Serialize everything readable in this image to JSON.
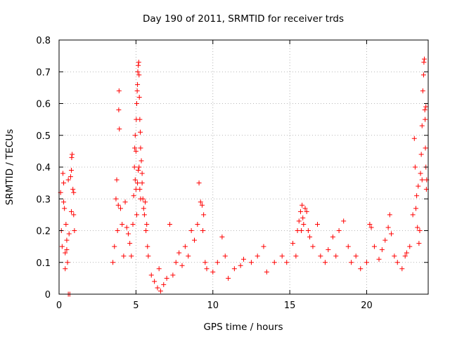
{
  "chart_data": {
    "type": "scatter",
    "title": "Day 190 of 2011, SRMTID for receiver trds",
    "xlabel": "GPS time / hours",
    "ylabel": "SRMTID / TECUs",
    "xlim": [
      0,
      24
    ],
    "ylim": [
      0,
      0.8
    ],
    "x_ticks": [
      0,
      5,
      10,
      15,
      20
    ],
    "x_tick_labels": [
      "0",
      "5",
      "10",
      "15",
      "20"
    ],
    "y_ticks": [
      0,
      0.1,
      0.2,
      0.3,
      0.4,
      0.5,
      0.6,
      0.7,
      0.8
    ],
    "y_tick_labels": [
      "0",
      "0.1",
      "0.2",
      "0.3",
      "0.4",
      "0.5",
      "0.6",
      "0.7",
      "0.8"
    ],
    "grid": true,
    "marker": "+",
    "color": "#ff0000",
    "series": [
      {
        "name": "SRMTID",
        "points": [
          [
            0.1,
            0.32
          ],
          [
            0.2,
            0.15
          ],
          [
            0.25,
            0.38
          ],
          [
            0.3,
            0.29
          ],
          [
            0.35,
            0.27
          ],
          [
            0.4,
            0.13
          ],
          [
            0.45,
            0.22
          ],
          [
            0.5,
            0.14
          ],
          [
            0.55,
            0.1
          ],
          [
            0.6,
            0.36
          ],
          [
            0.65,
            0.19
          ],
          [
            0.7,
            0.0
          ],
          [
            0.75,
            0.37
          ],
          [
            0.8,
            0.39
          ],
          [
            0.82,
            0.43
          ],
          [
            0.85,
            0.44
          ],
          [
            0.9,
            0.33
          ],
          [
            0.95,
            0.25
          ],
          [
            1.0,
            0.2
          ],
          [
            0.6,
            0.0
          ],
          [
            0.3,
            0.35
          ],
          [
            0.15,
            0.2
          ],
          [
            0.95,
            0.32
          ],
          [
            0.4,
            0.08
          ],
          [
            0.8,
            0.26
          ],
          [
            0.5,
            0.17
          ],
          [
            3.5,
            0.1
          ],
          [
            3.6,
            0.15
          ],
          [
            3.7,
            0.3
          ],
          [
            3.75,
            0.36
          ],
          [
            3.8,
            0.2
          ],
          [
            3.85,
            0.28
          ],
          [
            3.88,
            0.58
          ],
          [
            3.9,
            0.64
          ],
          [
            3.92,
            0.52
          ],
          [
            4.0,
            0.27
          ],
          [
            4.1,
            0.22
          ],
          [
            4.2,
            0.12
          ],
          [
            4.3,
            0.29
          ],
          [
            4.4,
            0.21
          ],
          [
            4.5,
            0.19
          ],
          [
            4.6,
            0.16
          ],
          [
            4.7,
            0.12
          ],
          [
            4.8,
            0.22
          ],
          [
            4.85,
            0.31
          ],
          [
            4.9,
            0.4
          ],
          [
            4.92,
            0.46
          ],
          [
            4.95,
            0.5
          ],
          [
            5.0,
            0.45
          ],
          [
            5.02,
            0.55
          ],
          [
            5.05,
            0.6
          ],
          [
            5.08,
            0.64
          ],
          [
            5.1,
            0.66
          ],
          [
            5.12,
            0.7
          ],
          [
            5.15,
            0.72
          ],
          [
            5.18,
            0.73
          ],
          [
            5.2,
            0.69
          ],
          [
            5.22,
            0.62
          ],
          [
            5.25,
            0.55
          ],
          [
            5.28,
            0.51
          ],
          [
            5.3,
            0.46
          ],
          [
            5.35,
            0.42
          ],
          [
            5.4,
            0.38
          ],
          [
            5.45,
            0.3
          ],
          [
            5.5,
            0.27
          ],
          [
            5.55,
            0.25
          ],
          [
            5.6,
            0.29
          ],
          [
            5.65,
            0.2
          ],
          [
            5.7,
            0.22
          ],
          [
            5.75,
            0.15
          ],
          [
            5.8,
            0.12
          ],
          [
            5.1,
            0.35
          ],
          [
            5.15,
            0.39
          ],
          [
            5.2,
            0.4
          ],
          [
            5.25,
            0.33
          ],
          [
            5.3,
            0.3
          ],
          [
            5.4,
            0.35
          ],
          [
            5.05,
            0.25
          ],
          [
            4.95,
            0.36
          ],
          [
            5.0,
            0.33
          ],
          [
            6.0,
            0.06
          ],
          [
            6.2,
            0.04
          ],
          [
            6.4,
            0.02
          ],
          [
            6.5,
            0.08
          ],
          [
            6.6,
            0.01
          ],
          [
            6.8,
            0.03
          ],
          [
            7.0,
            0.05
          ],
          [
            7.2,
            0.22
          ],
          [
            7.4,
            0.06
          ],
          [
            7.6,
            0.1
          ],
          [
            7.8,
            0.13
          ],
          [
            8.0,
            0.09
          ],
          [
            8.2,
            0.15
          ],
          [
            8.4,
            0.12
          ],
          [
            8.6,
            0.2
          ],
          [
            8.8,
            0.17
          ],
          [
            9.0,
            0.22
          ],
          [
            9.1,
            0.35
          ],
          [
            9.2,
            0.29
          ],
          [
            9.3,
            0.28
          ],
          [
            9.35,
            0.2
          ],
          [
            9.4,
            0.25
          ],
          [
            9.5,
            0.1
          ],
          [
            9.6,
            0.08
          ],
          [
            10.0,
            0.07
          ],
          [
            10.3,
            0.1
          ],
          [
            10.6,
            0.18
          ],
          [
            10.8,
            0.12
          ],
          [
            11.0,
            0.05
          ],
          [
            11.4,
            0.08
          ],
          [
            11.8,
            0.09
          ],
          [
            12.0,
            0.11
          ],
          [
            12.5,
            0.1
          ],
          [
            12.9,
            0.12
          ],
          [
            13.3,
            0.15
          ],
          [
            13.5,
            0.07
          ],
          [
            14.0,
            0.1
          ],
          [
            14.5,
            0.12
          ],
          [
            14.8,
            0.1
          ],
          [
            15.2,
            0.16
          ],
          [
            15.4,
            0.12
          ],
          [
            15.5,
            0.2
          ],
          [
            15.6,
            0.23
          ],
          [
            15.7,
            0.26
          ],
          [
            15.75,
            0.2
          ],
          [
            15.8,
            0.28
          ],
          [
            15.85,
            0.24
          ],
          [
            15.9,
            0.22
          ],
          [
            16.0,
            0.27
          ],
          [
            16.1,
            0.26
          ],
          [
            16.2,
            0.2
          ],
          [
            16.3,
            0.18
          ],
          [
            16.5,
            0.15
          ],
          [
            16.8,
            0.22
          ],
          [
            17.0,
            0.12
          ],
          [
            17.3,
            0.1
          ],
          [
            17.5,
            0.14
          ],
          [
            17.8,
            0.18
          ],
          [
            18.0,
            0.12
          ],
          [
            18.2,
            0.2
          ],
          [
            18.5,
            0.23
          ],
          [
            18.8,
            0.15
          ],
          [
            19.0,
            0.1
          ],
          [
            19.3,
            0.12
          ],
          [
            19.6,
            0.08
          ],
          [
            20.0,
            0.1
          ],
          [
            20.2,
            0.22
          ],
          [
            20.3,
            0.21
          ],
          [
            20.5,
            0.15
          ],
          [
            20.8,
            0.11
          ],
          [
            21.0,
            0.14
          ],
          [
            21.2,
            0.17
          ],
          [
            21.4,
            0.21
          ],
          [
            21.5,
            0.25
          ],
          [
            21.6,
            0.19
          ],
          [
            21.8,
            0.12
          ],
          [
            22.0,
            0.1
          ],
          [
            22.3,
            0.08
          ],
          [
            22.5,
            0.12
          ],
          [
            22.6,
            0.13
          ],
          [
            22.8,
            0.15
          ],
          [
            23.0,
            0.25
          ],
          [
            23.1,
            0.49
          ],
          [
            23.2,
            0.27
          ],
          [
            23.25,
            0.31
          ],
          [
            23.3,
            0.21
          ],
          [
            23.35,
            0.34
          ],
          [
            23.4,
            0.16
          ],
          [
            23.45,
            0.2
          ],
          [
            23.5,
            0.38
          ],
          [
            23.55,
            0.44
          ],
          [
            23.6,
            0.53
          ],
          [
            23.65,
            0.64
          ],
          [
            23.7,
            0.69
          ],
          [
            23.72,
            0.73
          ],
          [
            23.75,
            0.74
          ],
          [
            23.78,
            0.58
          ],
          [
            23.8,
            0.55
          ],
          [
            23.82,
            0.46
          ],
          [
            23.85,
            0.4
          ],
          [
            23.88,
            0.33
          ],
          [
            23.9,
            0.36
          ],
          [
            23.15,
            0.4
          ],
          [
            23.6,
            0.36
          ],
          [
            23.85,
            0.59
          ]
        ]
      }
    ]
  }
}
